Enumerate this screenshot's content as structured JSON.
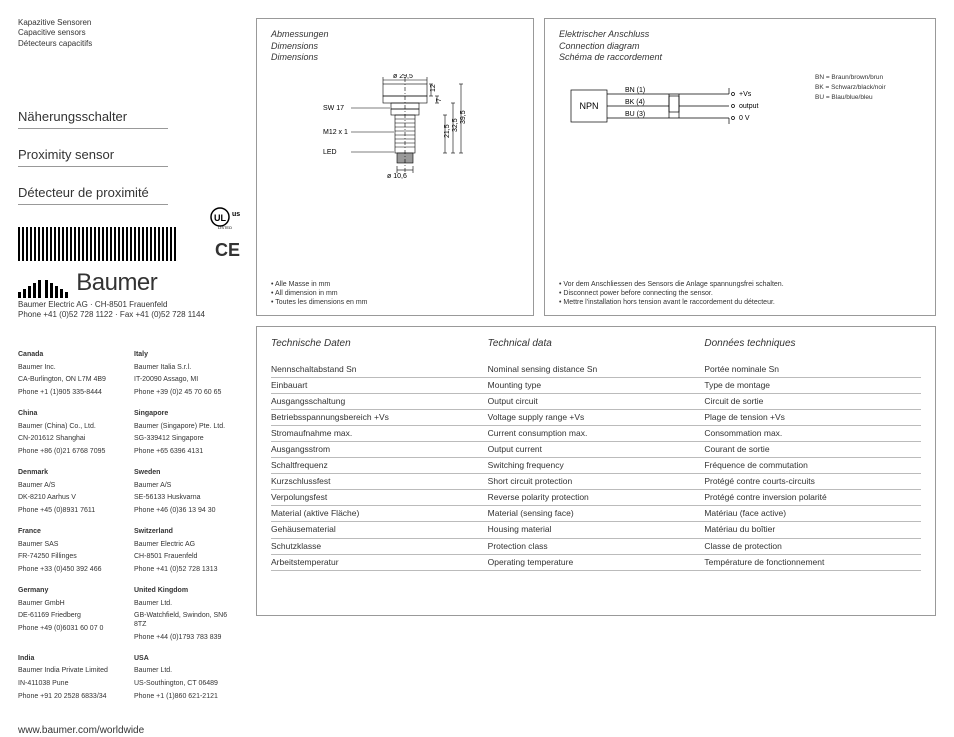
{
  "header": {
    "types": [
      "Kapazitive Sensoren",
      "Capacitive sensors",
      "Détecteurs capacitifs"
    ],
    "titles": [
      "Näherungsschalter",
      "Proximity sensor",
      "Détecteur de proximité"
    ],
    "company": "Baumer Electric AG · CH-8501 Frauenfeld",
    "phone": "Phone +41 (0)52 728 1122 · Fax +41 (0)52 728 1144",
    "logo": "Baumer",
    "url": "www.baumer.com/worldwide",
    "cert_ul": "UL",
    "cert_ul_sub": "LISTED",
    "cert_ce": "CE"
  },
  "contacts": [
    {
      "country": "Canada",
      "lines": [
        "Baumer Inc.",
        "CA-Burlington, ON L7M 4B9",
        "Phone +1 (1)905 335-8444"
      ]
    },
    {
      "country": "Italy",
      "lines": [
        "Baumer Italia S.r.l.",
        "IT-20090 Assago, MI",
        "Phone +39 (0)2 45 70 60 65"
      ]
    },
    {
      "country": "China",
      "lines": [
        "Baumer (China) Co., Ltd.",
        "CN-201612 Shanghai",
        "Phone +86 (0)21 6768 7095"
      ]
    },
    {
      "country": "Singapore",
      "lines": [
        "Baumer (Singapore) Pte. Ltd.",
        "SG-339412 Singapore",
        "Phone +65 6396 4131"
      ]
    },
    {
      "country": "Denmark",
      "lines": [
        "Baumer A/S",
        "DK-8210 Aarhus V",
        "Phone +45 (0)8931 7611"
      ]
    },
    {
      "country": "Sweden",
      "lines": [
        "Baumer A/S",
        "SE-56133 Huskvarna",
        "Phone +46 (0)36 13 94 30"
      ]
    },
    {
      "country": "France",
      "lines": [
        "Baumer SAS",
        "FR-74250 Fillinges",
        "Phone +33 (0)450 392 466"
      ]
    },
    {
      "country": "Switzerland",
      "lines": [
        "Baumer Electric AG",
        "CH-8501 Frauenfeld",
        "Phone +41 (0)52 728 1313"
      ]
    },
    {
      "country": "Germany",
      "lines": [
        "Baumer GmbH",
        "DE-61169 Friedberg",
        "Phone +49 (0)6031 60 07 0"
      ]
    },
    {
      "country": "United Kingdom",
      "lines": [
        "Baumer Ltd.",
        "GB-Watchfield, Swindon, SN6 8TZ",
        "Phone +44 (0)1793 783 839"
      ]
    },
    {
      "country": "India",
      "lines": [
        "Baumer India Private Limited",
        "IN-411038 Pune",
        "Phone +91 20 2528 6833/34"
      ]
    },
    {
      "country": "USA",
      "lines": [
        "Baumer Ltd.",
        "US-Southington, CT 06489",
        "Phone +1 (1)860 621-2121"
      ]
    }
  ],
  "dimensions": {
    "title": [
      "Abmessungen",
      "Dimensions",
      "Dimensions"
    ],
    "labels": {
      "diameter_top": "ø 29,5",
      "h_12": "12",
      "h_7": "7",
      "sw": "SW 17",
      "thread": "M12 x 1",
      "led": "LED",
      "diameter_tip": "ø 10,6",
      "len_215": "21,5",
      "len_325": "32,5",
      "len_395": "39,5"
    },
    "footnote": [
      "• Alle Masse in mm",
      "• All dimension in mm",
      "• Toutes les dimensions en mm"
    ]
  },
  "connection": {
    "title": [
      "Elektrischer Anschluss",
      "Connection diagram",
      "Schéma de raccordement"
    ],
    "box_label": "NPN",
    "wires": {
      "bn": "BN (1)",
      "bn_end": "+Vs",
      "bk": "BK (4)",
      "bk_end": "output",
      "bu": "BU (3)",
      "bu_end": "0 V"
    },
    "legend": [
      "BN = Braun/brown/brun",
      "BK = Schwarz/black/noir",
      "BU = Blau/blue/bleu"
    ],
    "footnote": [
      "• Vor dem Anschliessen des Sensors die Anlage spannungsfrei schalten.",
      "• Disconnect power before connecting the sensor.",
      "• Mettre l'installation hors tension avant le raccordement du détecteur."
    ]
  },
  "tech": {
    "headers": [
      "Technische Daten",
      "Technical data",
      "Données techniques"
    ],
    "rows": [
      [
        "Nennschaltabstand Sn",
        "Nominal sensing distance Sn",
        "Portée nominale Sn"
      ],
      [
        "Einbauart",
        "Mounting type",
        "Type de montage"
      ],
      [
        "Ausgangsschaltung",
        "Output circuit",
        "Circuit de sortie"
      ],
      [
        "Betriebsspannungsbereich +Vs",
        "Voltage supply range +Vs",
        "Plage de tension +Vs"
      ],
      [
        "Stromaufnahme max.",
        "Current consumption max.",
        "Consommation max."
      ],
      [
        "Ausgangsstrom",
        "Output current",
        "Courant de sortie"
      ],
      [
        "Schaltfrequenz",
        "Switching frequency",
        "Fréquence de commutation"
      ],
      [
        "Kurzschlussfest",
        "Short circuit protection",
        "Protégé contre courts-circuits"
      ],
      [
        "Verpolungsfest",
        "Reverse polarity protection",
        "Protégé contre inversion polarité"
      ],
      [
        "Material (aktive Fläche)",
        "Material (sensing face)",
        "Matériau (face active)"
      ],
      [
        "Gehäusematerial",
        "Housing material",
        "Matériau du boîtier"
      ],
      [
        "Schutzklasse",
        "Protection class",
        "Classe de protection"
      ],
      [
        "Arbeitstemperatur",
        "Operating temperature",
        "Température de fonctionnement"
      ]
    ]
  },
  "style": {
    "border_color": "#999999",
    "text_color": "#333333",
    "font_family": "Arial"
  }
}
